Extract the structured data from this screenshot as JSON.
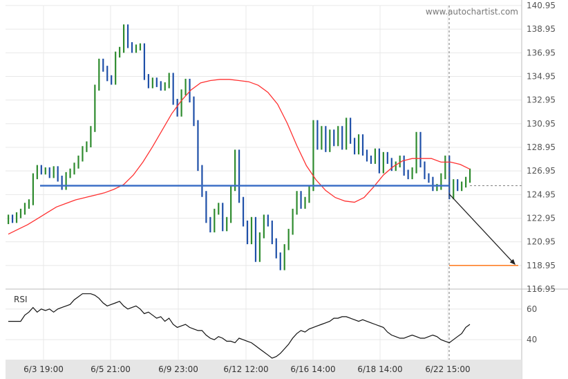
{
  "watermark": "www.autochartist.com",
  "chart_data": [
    {
      "type": "bar",
      "subtype": "ohlc-price",
      "title": "",
      "ylim": [
        116.95,
        140.95
      ],
      "y_ticks": [
        "140.95",
        "138.95",
        "136.95",
        "134.95",
        "132.95",
        "130.95",
        "128.95",
        "126.95",
        "124.95",
        "122.95",
        "120.95",
        "118.95",
        "116.95"
      ],
      "x_ticks": [
        "6/3 19:00",
        "6/5 21:00",
        "6/9 23:00",
        "6/12 12:00",
        "6/16 14:00",
        "6/18 14:00",
        "6/22 15:00"
      ],
      "grid": true,
      "colors": {
        "up": "#2e8b2e",
        "down": "#1e4fa8",
        "ma": "#ff3030",
        "support": "#3b6fc6",
        "target": "#ff6a00",
        "forecast": "#222222"
      },
      "close": [
        123.0,
        122.8,
        123.2,
        123.5,
        124.0,
        124.3,
        126.5,
        127.2,
        126.9,
        127.0,
        126.6,
        127.1,
        126.3,
        125.6,
        126.6,
        126.9,
        127.4,
        128.0,
        128.8,
        129.2,
        130.5,
        134.0,
        136.2,
        135.6,
        134.8,
        134.5,
        136.8,
        137.2,
        139.1,
        137.6,
        137.2,
        137.4,
        137.5,
        134.9,
        134.2,
        134.6,
        134.3,
        134.0,
        134.2,
        135.0,
        132.8,
        131.8,
        133.6,
        134.5,
        133.0,
        131.0,
        127.2,
        125.0,
        122.8,
        122.0,
        123.5,
        124.0,
        122.1,
        122.8,
        125.5,
        128.5,
        124.5,
        122.5,
        121.0,
        122.8,
        119.5,
        121.5,
        123.0,
        122.5,
        121.0,
        119.8,
        118.8,
        120.5,
        121.8,
        123.5,
        125.0,
        124.0,
        124.5,
        125.5,
        131.0,
        129.0,
        130.5,
        128.8,
        130.2,
        129.3,
        130.5,
        129.0,
        131.2,
        129.5,
        128.6,
        129.8,
        128.5,
        128.0,
        127.8,
        128.6,
        127.0,
        128.3,
        127.8,
        127.2,
        127.5,
        128.0,
        126.8,
        126.5,
        127.0,
        130.0,
        127.5,
        126.5,
        126.2,
        125.5,
        125.6,
        126.5,
        128.0,
        124.8,
        126.0,
        125.5,
        125.8,
        126.2,
        126.9
      ],
      "moving_average": [
        121.6,
        122.0,
        122.4,
        122.9,
        123.4,
        123.9,
        124.2,
        124.5,
        124.7,
        124.9,
        125.1,
        125.4,
        125.8,
        126.6,
        127.7,
        129.0,
        130.4,
        131.8,
        132.9,
        133.8,
        134.4,
        134.6,
        134.7,
        134.7,
        134.6,
        134.5,
        134.2,
        133.6,
        132.6,
        131.0,
        129.1,
        127.4,
        126.2,
        125.3,
        124.7,
        124.4,
        124.3,
        124.7,
        125.6,
        126.6,
        127.3,
        127.8,
        128.0,
        128.0,
        128.0,
        127.7,
        127.7,
        127.5,
        127.1
      ],
      "support_level": 125.7,
      "target_level": 118.95,
      "forecast": {
        "from": 125.0,
        "to": 119.0
      }
    },
    {
      "type": "line",
      "title": "RSI",
      "ylim": [
        27,
        73
      ],
      "y_ticks": [
        "60",
        "40"
      ],
      "values": [
        52,
        52,
        52,
        52,
        56,
        58,
        61,
        58,
        60,
        59,
        60,
        58,
        60,
        61,
        62,
        63,
        66,
        68,
        70,
        70,
        70,
        69,
        67,
        64,
        62,
        63,
        64,
        65,
        62,
        60,
        61,
        62,
        60,
        57,
        58,
        56,
        54,
        55,
        52,
        54,
        50,
        48,
        49,
        50,
        48,
        47,
        46,
        46,
        43,
        41,
        40,
        42,
        41,
        39,
        39,
        38,
        41,
        40,
        39,
        38,
        36,
        34,
        32,
        30,
        28,
        29,
        31,
        34,
        37,
        41,
        44,
        46,
        45,
        47,
        48,
        49,
        50,
        51,
        52,
        54,
        54,
        55,
        55,
        54,
        53,
        52,
        53,
        52,
        51,
        50,
        49,
        48,
        45,
        43,
        42,
        41,
        41,
        42,
        43,
        42,
        41,
        41,
        42,
        43,
        42,
        40,
        39,
        38,
        40,
        42,
        44,
        48,
        50
      ]
    }
  ]
}
